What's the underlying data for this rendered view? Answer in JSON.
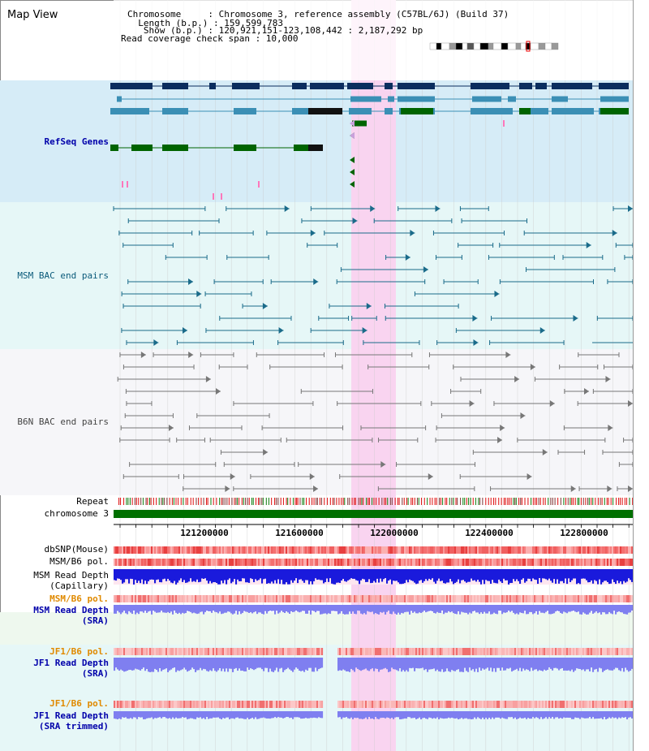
{
  "header": {
    "view_title": "Map View",
    "info_lines": [
      "Chromosome     : Chromosome 3, reference assembly (C57BL/6J) (Build 37)",
      "  Length (b.p.) : 159,599,783",
      "   Show (b.p.) : 120,921,151-123,108,442 : 2,187,292 bp",
      "Read coverage check span : 10,000"
    ]
  },
  "tracks": {
    "refseq": "RefSeq Genes",
    "msm_bac": "MSM BAC end pairs",
    "b6n_bac": "B6N BAC end pairs",
    "repeat": "Repeat",
    "chromosome": "chromosome 3",
    "dbsnp": "dbSNP(Mouse)",
    "msm_b6_pol_1": "MSM/B6 pol.",
    "msm_read_depth_cap_1": "MSM Read Depth",
    "msm_read_depth_cap_2": "(Capillary)",
    "msm_b6_pol_2": "MSM/B6 pol.",
    "msm_read_depth_sra_1": "MSM Read Depth",
    "msm_read_depth_sra_2": "(SRA)",
    "jf1_b6_pol_1": "JF1/B6 pol.",
    "jf1_read_depth_sra_1": "JF1 Read Depth",
    "jf1_read_depth_sra_2": "(SRA)",
    "jf1_b6_pol_2": "JF1/B6 pol.",
    "jf1_read_depth_trim_1": "JF1 Read Depth",
    "jf1_read_depth_trim_2": "(SRA trimmed)"
  },
  "axis": {
    "ticks": [
      "121200000",
      "121600000",
      "122000000",
      "122400000",
      "122800000"
    ]
  },
  "colors": {
    "refseq_bg": "#d6ecf7",
    "msm_bg": "#e6f7f7",
    "b6n_bg": "#f6f6f9",
    "highlight": "#f9d4f0",
    "gene_dark": "#0b2d5e",
    "gene_mid": "#3b8fb5",
    "gene_green": "#006400",
    "msm_line": "#1a6b8a",
    "b6n_line": "#777777",
    "chrom_green": "#007000",
    "depth_blue": "#1a1adc",
    "depth_light": "#7f7ff0"
  }
}
